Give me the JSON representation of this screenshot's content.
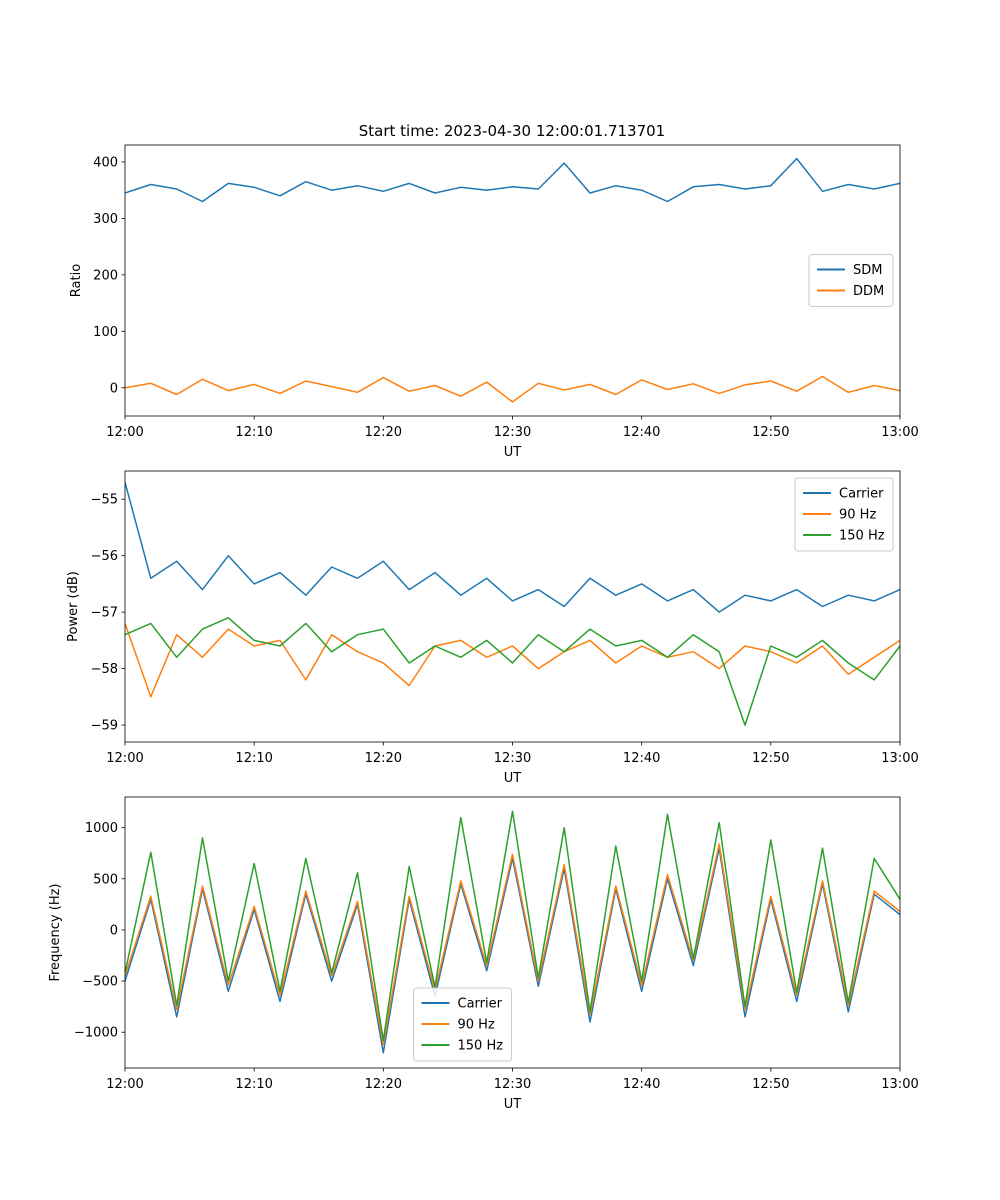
{
  "figure": {
    "title": "Start time: 2023-04-30 12:00:01.713701"
  },
  "chart_data": [
    {
      "type": "line",
      "xlabel": "UT",
      "ylabel": "Ratio",
      "xlim": [
        "12:00",
        "13:00"
      ],
      "xticks": [
        "12:00",
        "12:10",
        "12:20",
        "12:30",
        "12:40",
        "12:50",
        "13:00"
      ],
      "ylim": [
        -50,
        430
      ],
      "yticks": [
        0,
        100,
        200,
        300,
        400
      ],
      "legend_position": "center-right",
      "series": [
        {
          "name": "SDM",
          "color": "#1f77b4",
          "time": [
            "12:00",
            "12:02",
            "12:04",
            "12:06",
            "12:08",
            "12:10",
            "12:12",
            "12:14",
            "12:16",
            "12:18",
            "12:20",
            "12:22",
            "12:24",
            "12:26",
            "12:28",
            "12:30",
            "12:32",
            "12:34",
            "12:36",
            "12:38",
            "12:40",
            "12:42",
            "12:44",
            "12:46",
            "12:48",
            "12:50",
            "12:52",
            "12:54",
            "12:56",
            "12:58",
            "13:00"
          ],
          "values": [
            345,
            360,
            352,
            330,
            362,
            355,
            340,
            365,
            350,
            358,
            348,
            362,
            345,
            355,
            350,
            356,
            352,
            398,
            345,
            358,
            350,
            330,
            356,
            360,
            352,
            358,
            406,
            348,
            360,
            352,
            362
          ]
        },
        {
          "name": "DDM",
          "color": "#ff7f0e",
          "time": [
            "12:00",
            "12:02",
            "12:04",
            "12:06",
            "12:08",
            "12:10",
            "12:12",
            "12:14",
            "12:16",
            "12:18",
            "12:20",
            "12:22",
            "12:24",
            "12:26",
            "12:28",
            "12:30",
            "12:32",
            "12:34",
            "12:36",
            "12:38",
            "12:40",
            "12:42",
            "12:44",
            "12:46",
            "12:48",
            "12:50",
            "12:52",
            "12:54",
            "12:56",
            "12:58",
            "13:00"
          ],
          "values": [
            0,
            8,
            -12,
            15,
            -5,
            6,
            -10,
            12,
            2,
            -8,
            18,
            -6,
            4,
            -15,
            10,
            -25,
            8,
            -4,
            6,
            -12,
            14,
            -3,
            7,
            -10,
            5,
            12,
            -6,
            20,
            -8,
            4,
            -5
          ]
        }
      ]
    },
    {
      "type": "line",
      "xlabel": "UT",
      "ylabel": "Power (dB)",
      "xlim": [
        "12:00",
        "13:00"
      ],
      "xticks": [
        "12:00",
        "12:10",
        "12:20",
        "12:30",
        "12:40",
        "12:50",
        "13:00"
      ],
      "ylim": [
        -59.3,
        -54.5
      ],
      "yticks": [
        -59,
        -58,
        -57,
        -56,
        -55
      ],
      "legend_position": "top-right",
      "series": [
        {
          "name": "Carrier",
          "color": "#1f77b4",
          "time": [
            "12:00",
            "12:02",
            "12:04",
            "12:06",
            "12:08",
            "12:10",
            "12:12",
            "12:14",
            "12:16",
            "12:18",
            "12:20",
            "12:22",
            "12:24",
            "12:26",
            "12:28",
            "12:30",
            "12:32",
            "12:34",
            "12:36",
            "12:38",
            "12:40",
            "12:42",
            "12:44",
            "12:46",
            "12:48",
            "12:50",
            "12:52",
            "12:54",
            "12:56",
            "12:58",
            "13:00"
          ],
          "values": [
            -54.7,
            -56.4,
            -56.1,
            -56.6,
            -56.0,
            -56.5,
            -56.3,
            -56.7,
            -56.2,
            -56.4,
            -56.1,
            -56.6,
            -56.3,
            -56.7,
            -56.4,
            -56.8,
            -56.6,
            -56.9,
            -56.4,
            -56.7,
            -56.5,
            -56.8,
            -56.6,
            -57.0,
            -56.7,
            -56.8,
            -56.6,
            -56.9,
            -56.7,
            -56.8,
            -56.6
          ]
        },
        {
          "name": "90 Hz",
          "color": "#ff7f0e",
          "time": [
            "12:00",
            "12:02",
            "12:04",
            "12:06",
            "12:08",
            "12:10",
            "12:12",
            "12:14",
            "12:16",
            "12:18",
            "12:20",
            "12:22",
            "12:24",
            "12:26",
            "12:28",
            "12:30",
            "12:32",
            "12:34",
            "12:36",
            "12:38",
            "12:40",
            "12:42",
            "12:44",
            "12:46",
            "12:48",
            "12:50",
            "12:52",
            "12:54",
            "12:56",
            "12:58",
            "13:00"
          ],
          "values": [
            -57.2,
            -58.5,
            -57.4,
            -57.8,
            -57.3,
            -57.6,
            -57.5,
            -58.2,
            -57.4,
            -57.7,
            -57.9,
            -58.3,
            -57.6,
            -57.5,
            -57.8,
            -57.6,
            -58.0,
            -57.7,
            -57.5,
            -57.9,
            -57.6,
            -57.8,
            -57.7,
            -58.0,
            -57.6,
            -57.7,
            -57.9,
            -57.6,
            -58.1,
            -57.8,
            -57.5
          ]
        },
        {
          "name": "150 Hz",
          "color": "#2ca02c",
          "time": [
            "12:00",
            "12:02",
            "12:04",
            "12:06",
            "12:08",
            "12:10",
            "12:12",
            "12:14",
            "12:16",
            "12:18",
            "12:20",
            "12:22",
            "12:24",
            "12:26",
            "12:28",
            "12:30",
            "12:32",
            "12:34",
            "12:36",
            "12:38",
            "12:40",
            "12:42",
            "12:44",
            "12:46",
            "12:48",
            "12:50",
            "12:52",
            "12:54",
            "12:56",
            "12:58",
            "13:00"
          ],
          "values": [
            -57.4,
            -57.2,
            -57.8,
            -57.3,
            -57.1,
            -57.5,
            -57.6,
            -57.2,
            -57.7,
            -57.4,
            -57.3,
            -57.9,
            -57.6,
            -57.8,
            -57.5,
            -57.9,
            -57.4,
            -57.7,
            -57.3,
            -57.6,
            -57.5,
            -57.8,
            -57.4,
            -57.7,
            -59.0,
            -57.6,
            -57.8,
            -57.5,
            -57.9,
            -58.2,
            -57.6
          ]
        }
      ]
    },
    {
      "type": "line",
      "xlabel": "UT",
      "ylabel": "Frequency (Hz)",
      "xlim": [
        "12:00",
        "13:00"
      ],
      "xticks": [
        "12:00",
        "12:10",
        "12:20",
        "12:30",
        "12:40",
        "12:50",
        "13:00"
      ],
      "ylim": [
        -1350,
        1300
      ],
      "yticks": [
        -1000,
        -500,
        0,
        500,
        1000
      ],
      "legend_position": "bottom-center",
      "series": [
        {
          "name": "Carrier",
          "color": "#1f77b4",
          "time": [
            "12:00",
            "12:02",
            "12:04",
            "12:06",
            "12:08",
            "12:10",
            "12:12",
            "12:14",
            "12:16",
            "12:18",
            "12:20",
            "12:22",
            "12:24",
            "12:26",
            "12:28",
            "12:30",
            "12:32",
            "12:34",
            "12:36",
            "12:38",
            "12:40",
            "12:42",
            "12:44",
            "12:46",
            "12:48",
            "12:50",
            "12:52",
            "12:54",
            "12:56",
            "12:58",
            "13:00"
          ],
          "values": [
            -500,
            300,
            -850,
            400,
            -600,
            200,
            -700,
            350,
            -500,
            250,
            -1200,
            300,
            -650,
            450,
            -400,
            700,
            -550,
            600,
            -900,
            400,
            -600,
            500,
            -350,
            800,
            -850,
            300,
            -700,
            450,
            -800,
            350,
            150
          ]
        },
        {
          "name": "90 Hz",
          "color": "#ff7f0e",
          "time": [
            "12:00",
            "12:02",
            "12:04",
            "12:06",
            "12:08",
            "12:10",
            "12:12",
            "12:14",
            "12:16",
            "12:18",
            "12:20",
            "12:22",
            "12:24",
            "12:26",
            "12:28",
            "12:30",
            "12:32",
            "12:34",
            "12:36",
            "12:38",
            "12:40",
            "12:42",
            "12:44",
            "12:46",
            "12:48",
            "12:50",
            "12:52",
            "12:54",
            "12:56",
            "12:58",
            "13:00"
          ],
          "values": [
            -450,
            330,
            -780,
            430,
            -540,
            230,
            -640,
            380,
            -450,
            280,
            -1120,
            330,
            -590,
            480,
            -350,
            740,
            -500,
            640,
            -830,
            430,
            -540,
            540,
            -300,
            840,
            -780,
            330,
            -640,
            480,
            -740,
            380,
            180
          ]
        },
        {
          "name": "150 Hz",
          "color": "#2ca02c",
          "time": [
            "12:00",
            "12:02",
            "12:04",
            "12:06",
            "12:08",
            "12:10",
            "12:12",
            "12:14",
            "12:16",
            "12:18",
            "12:20",
            "12:22",
            "12:24",
            "12:26",
            "12:28",
            "12:30",
            "12:32",
            "12:34",
            "12:36",
            "12:38",
            "12:40",
            "12:42",
            "12:44",
            "12:46",
            "12:48",
            "12:50",
            "12:52",
            "12:54",
            "12:56",
            "12:58",
            "13:00"
          ],
          "values": [
            -420,
            760,
            -740,
            900,
            -500,
            650,
            -600,
            700,
            -420,
            560,
            -1080,
            620,
            -560,
            1100,
            -320,
            1160,
            -470,
            1000,
            -800,
            820,
            -500,
            1130,
            -280,
            1050,
            -750,
            880,
            -610,
            800,
            -710,
            700,
            300
          ]
        }
      ]
    }
  ]
}
